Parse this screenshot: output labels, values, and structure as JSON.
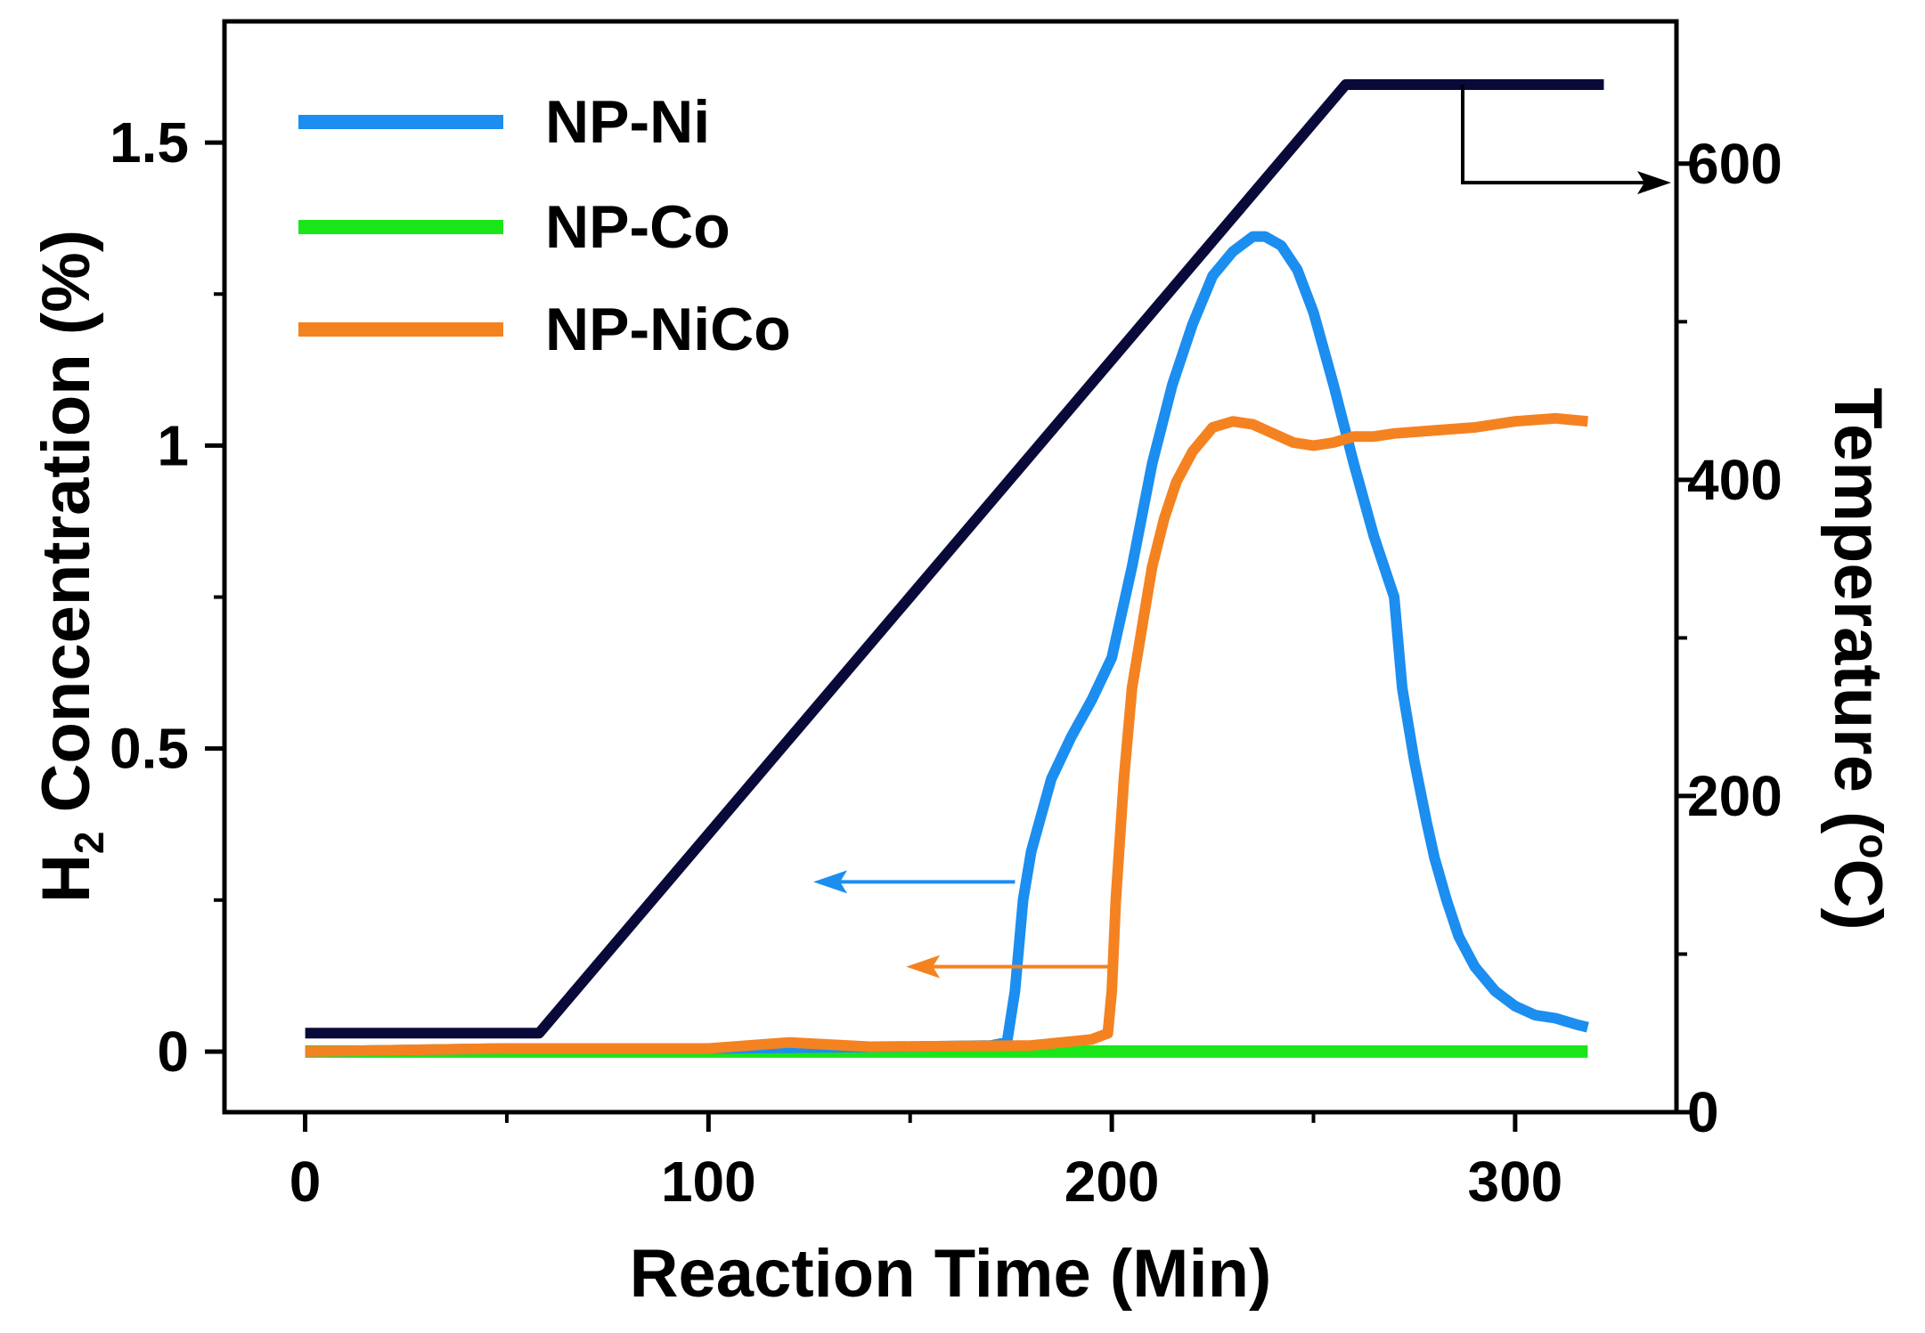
{
  "chart_data": {
    "type": "line",
    "xlabel": "Reaction Time (Min)",
    "ylabel_prefix": "H",
    "ylabel_sub": "2",
    "ylabel_suffix": " Concentration (%)",
    "y2label_prefix": "Temperature (",
    "y2label_sup": "o",
    "y2label_suffix": "C)",
    "xlim": [
      -20,
      340
    ],
    "ylim": [
      -0.1,
      1.7
    ],
    "y2lim": [
      0,
      690
    ],
    "xticks": [
      0,
      100,
      200,
      300
    ],
    "xtick_labels": [
      "0",
      "100",
      "200",
      "300"
    ],
    "yticks": [
      0,
      0.5,
      1,
      1.5
    ],
    "ytick_labels": [
      "0",
      "0.5",
      "1",
      "1.5"
    ],
    "y2ticks": [
      0,
      200,
      400,
      600
    ],
    "y2tick_labels": [
      "0",
      "200",
      "400",
      "600"
    ],
    "legend_position": "top-left",
    "series": [
      {
        "name": "NP-Ni",
        "axis": "left",
        "color": "#1b8ef0",
        "x": [
          0,
          50,
          100,
          150,
          170,
          174,
          176,
          178,
          180,
          185,
          190,
          195,
          200,
          205,
          210,
          215,
          220,
          225,
          230,
          235,
          238,
          242,
          246,
          250,
          255,
          260,
          265,
          270,
          272,
          275,
          278,
          280,
          283,
          286,
          290,
          295,
          300,
          305,
          310,
          315,
          318
        ],
        "y": [
          0.0,
          0.005,
          0.005,
          0.008,
          0.01,
          0.015,
          0.1,
          0.25,
          0.33,
          0.45,
          0.52,
          0.58,
          0.65,
          0.8,
          0.97,
          1.1,
          1.2,
          1.28,
          1.32,
          1.345,
          1.345,
          1.33,
          1.29,
          1.22,
          1.1,
          0.97,
          0.85,
          0.75,
          0.6,
          0.48,
          0.38,
          0.32,
          0.25,
          0.19,
          0.14,
          0.1,
          0.075,
          0.06,
          0.055,
          0.045,
          0.04
        ]
      },
      {
        "name": "NP-Co",
        "axis": "left",
        "color": "#19e619",
        "x": [
          0,
          318
        ],
        "y": [
          0.0,
          0.0
        ]
      },
      {
        "name": "NP-NiCo",
        "axis": "left",
        "color": "#f58220",
        "x": [
          0,
          50,
          100,
          120,
          140,
          180,
          195,
          199,
          200,
          201,
          203,
          205,
          208,
          210,
          213,
          216,
          220,
          225,
          230,
          235,
          240,
          245,
          250,
          255,
          260,
          265,
          270,
          280,
          290,
          300,
          310,
          318
        ],
        "y": [
          0.0,
          0.005,
          0.005,
          0.015,
          0.008,
          0.01,
          0.02,
          0.03,
          0.1,
          0.25,
          0.45,
          0.6,
          0.72,
          0.8,
          0.88,
          0.94,
          0.99,
          1.03,
          1.04,
          1.035,
          1.02,
          1.005,
          1.0,
          1.005,
          1.015,
          1.015,
          1.02,
          1.025,
          1.03,
          1.04,
          1.045,
          1.04
        ]
      },
      {
        "name": "Temperature",
        "axis": "right",
        "color": "#0a0a3a",
        "x": [
          0,
          58,
          258,
          322
        ],
        "y": [
          50,
          50,
          650,
          650
        ]
      }
    ],
    "annotations": [
      {
        "type": "arrow",
        "direction": "left",
        "color": "#1b8ef0",
        "target": "NP-Ni",
        "from_x": 176,
        "to_x": 126,
        "y": 0.28
      },
      {
        "type": "arrow",
        "direction": "left",
        "color": "#f58220",
        "target": "NP-NiCo",
        "from_x": 199,
        "to_x": 149,
        "y": 0.14
      },
      {
        "type": "arrow",
        "direction": "right",
        "color": "#000000",
        "target": "Temperature",
        "corner_x": 287,
        "top_y2": 650,
        "y2": 588
      }
    ]
  }
}
